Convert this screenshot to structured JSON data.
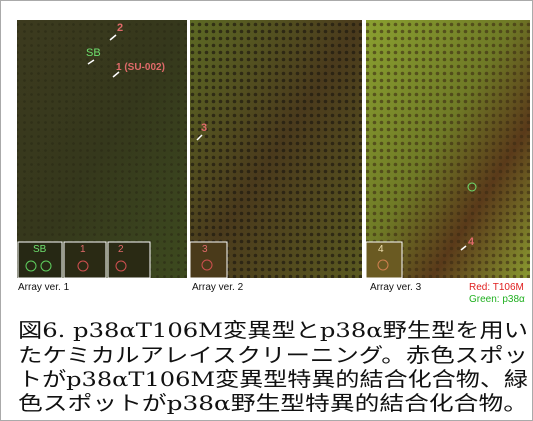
{
  "panels": [
    {
      "label": "Array ver. 1",
      "annotations": [
        "2",
        "SB",
        "1 (SU-002)"
      ],
      "insets": [
        "SB",
        "1",
        "2"
      ]
    },
    {
      "label": "Array ver. 2",
      "annotations": [
        "3"
      ],
      "insets": [
        "3"
      ]
    },
    {
      "label": "Array ver. 3",
      "annotations": [
        "4"
      ],
      "insets": [
        "4"
      ]
    }
  ],
  "legend": {
    "red": "Red: T106M",
    "green": "Green: p38α"
  },
  "caption": {
    "lines": [
      "図6. p38αT106M変異型とp38α野生型を用い",
      "たケミカルアレイスクリーニング。赤色スポッ",
      "トがp38αT106M変異型特異的結合化合物、緑",
      "色スポットがp38α野生型特異的結合化合物。"
    ]
  }
}
